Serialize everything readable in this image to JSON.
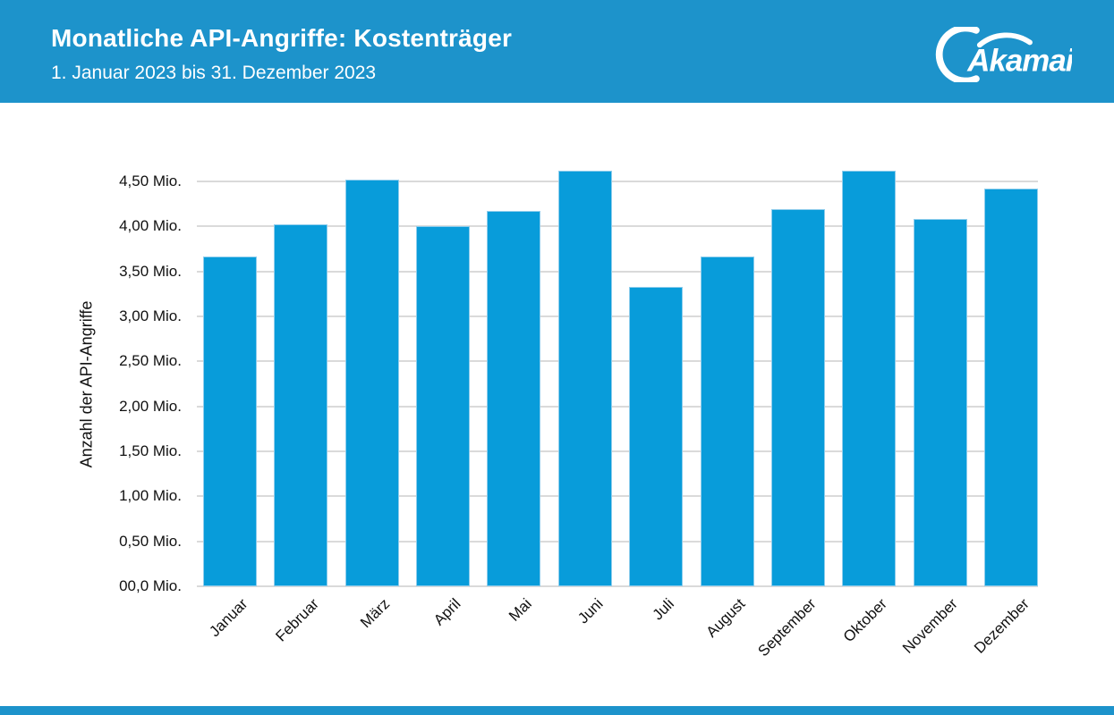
{
  "header": {
    "title": "Monatliche API-Angriffe: Kostenträger",
    "subtitle": "1. Januar 2023 bis 31. Dezember 2023",
    "background_color": "#1D93CB",
    "text_color": "#FFFFFF",
    "logo_text": "Akamai"
  },
  "chart_data": {
    "type": "bar",
    "title": "Monatliche API-Angriffe: Kostenträger",
    "subtitle": "1. Januar 2023 bis 31. Dezember 2023",
    "categories": [
      "Januar",
      "Februar",
      "März",
      "April",
      "Mai",
      "Juni",
      "Juli",
      "August",
      "September",
      "Oktober",
      "November",
      "Dezember"
    ],
    "values": [
      3.67,
      4.02,
      4.52,
      4.0,
      4.17,
      4.62,
      3.33,
      3.67,
      4.19,
      4.62,
      4.08,
      4.42
    ],
    "unit": "Mio.",
    "xlabel": "",
    "ylabel": "Anzahl der API-Angriffe",
    "ylim": [
      0,
      4.75
    ],
    "y_ticks": [
      {
        "value": 0.0,
        "label": "00,0 Mio."
      },
      {
        "value": 0.5,
        "label": "0,50 Mio."
      },
      {
        "value": 1.0,
        "label": "1,00 Mio."
      },
      {
        "value": 1.5,
        "label": "1,50 Mio."
      },
      {
        "value": 2.0,
        "label": "2,00 Mio."
      },
      {
        "value": 2.5,
        "label": "2,50 Mio."
      },
      {
        "value": 3.0,
        "label": "3,00 Mio."
      },
      {
        "value": 3.5,
        "label": "3,50 Mio."
      },
      {
        "value": 4.0,
        "label": "4,00 Mio."
      },
      {
        "value": 4.5,
        "label": "4,50 Mio."
      }
    ],
    "grid": true,
    "legend": false,
    "bar_color": "#089CDA",
    "bar_edge_color": "#8FCDEC",
    "gridline_color": "#DADADA",
    "axis_text_color": "#111111"
  },
  "footer": {
    "background_color": "#1D93CB"
  }
}
